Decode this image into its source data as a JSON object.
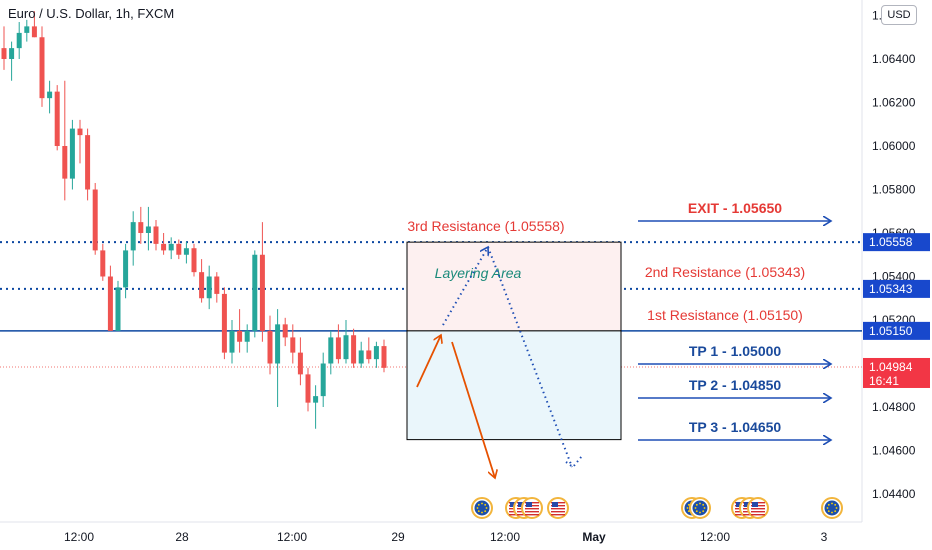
{
  "header": {
    "title": "Euro / U.S. Dollar, 1h, FXCM",
    "currency": "USD"
  },
  "chart_data": {
    "type": "candlestick",
    "symbol": "Euro / U.S. Dollar, 1h, FXCM",
    "y_axis": {
      "ticks": [
        "1.06600",
        "1.06400",
        "1.06200",
        "1.06000",
        "1.05800",
        "1.05600",
        "1.05400",
        "1.05200",
        "1.05000",
        "1.04800",
        "1.04600",
        "1.04400"
      ],
      "range": [
        1.0425,
        1.0665
      ]
    },
    "x_axis": {
      "ticks": [
        "12:00",
        "28",
        "12:00",
        "29",
        "12:00",
        "May",
        "12:00",
        "3"
      ]
    },
    "candles": [
      {
        "o": 1.0645,
        "h": 1.0655,
        "l": 1.0635,
        "c": 1.064
      },
      {
        "o": 1.064,
        "h": 1.0648,
        "l": 1.063,
        "c": 1.0645
      },
      {
        "o": 1.0645,
        "h": 1.0657,
        "l": 1.064,
        "c": 1.0652
      },
      {
        "o": 1.0652,
        "h": 1.0658,
        "l": 1.0648,
        "c": 1.0655
      },
      {
        "o": 1.0655,
        "h": 1.0662,
        "l": 1.065,
        "c": 1.065
      },
      {
        "o": 1.065,
        "h": 1.0655,
        "l": 1.0618,
        "c": 1.0622
      },
      {
        "o": 1.0622,
        "h": 1.063,
        "l": 1.0615,
        "c": 1.0625
      },
      {
        "o": 1.0625,
        "h": 1.0628,
        "l": 1.0598,
        "c": 1.06
      },
      {
        "o": 1.06,
        "h": 1.063,
        "l": 1.0575,
        "c": 1.0585
      },
      {
        "o": 1.0585,
        "h": 1.0612,
        "l": 1.058,
        "c": 1.0608
      },
      {
        "o": 1.0608,
        "h": 1.0612,
        "l": 1.0592,
        "c": 1.0605
      },
      {
        "o": 1.0605,
        "h": 1.0608,
        "l": 1.0575,
        "c": 1.058
      },
      {
        "o": 1.058,
        "h": 1.0583,
        "l": 1.055,
        "c": 1.0552
      },
      {
        "o": 1.0552,
        "h": 1.0555,
        "l": 1.0538,
        "c": 1.054
      },
      {
        "o": 1.054,
        "h": 1.0545,
        "l": 1.0515,
        "c": 1.0515
      },
      {
        "o": 1.0515,
        "h": 1.0538,
        "l": 1.0515,
        "c": 1.0535
      },
      {
        "o": 1.0535,
        "h": 1.0555,
        "l": 1.053,
        "c": 1.0552
      },
      {
        "o": 1.0552,
        "h": 1.057,
        "l": 1.0545,
        "c": 1.0565
      },
      {
        "o": 1.0565,
        "h": 1.0572,
        "l": 1.0555,
        "c": 1.056
      },
      {
        "o": 1.056,
        "h": 1.0572,
        "l": 1.0552,
        "c": 1.0563
      },
      {
        "o": 1.0563,
        "h": 1.0566,
        "l": 1.0552,
        "c": 1.0555
      },
      {
        "o": 1.0555,
        "h": 1.056,
        "l": 1.055,
        "c": 1.0552
      },
      {
        "o": 1.0552,
        "h": 1.0558,
        "l": 1.0548,
        "c": 1.0555
      },
      {
        "o": 1.0555,
        "h": 1.0557,
        "l": 1.0548,
        "c": 1.055
      },
      {
        "o": 1.055,
        "h": 1.0556,
        "l": 1.0546,
        "c": 1.0553
      },
      {
        "o": 1.0553,
        "h": 1.0555,
        "l": 1.054,
        "c": 1.0542
      },
      {
        "o": 1.0542,
        "h": 1.0548,
        "l": 1.0528,
        "c": 1.053
      },
      {
        "o": 1.053,
        "h": 1.0545,
        "l": 1.0525,
        "c": 1.054
      },
      {
        "o": 1.054,
        "h": 1.0542,
        "l": 1.0528,
        "c": 1.0532
      },
      {
        "o": 1.0532,
        "h": 1.0535,
        "l": 1.0502,
        "c": 1.0505
      },
      {
        "o": 1.0505,
        "h": 1.052,
        "l": 1.05,
        "c": 1.0515
      },
      {
        "o": 1.0515,
        "h": 1.0525,
        "l": 1.0505,
        "c": 1.051
      },
      {
        "o": 1.051,
        "h": 1.0518,
        "l": 1.0505,
        "c": 1.0515
      },
      {
        "o": 1.0515,
        "h": 1.0552,
        "l": 1.0512,
        "c": 1.055
      },
      {
        "o": 1.055,
        "h": 1.0565,
        "l": 1.051,
        "c": 1.0515
      },
      {
        "o": 1.0515,
        "h": 1.0522,
        "l": 1.0495,
        "c": 1.05
      },
      {
        "o": 1.05,
        "h": 1.0525,
        "l": 1.048,
        "c": 1.0518
      },
      {
        "o": 1.0518,
        "h": 1.0521,
        "l": 1.0508,
        "c": 1.0512
      },
      {
        "o": 1.0512,
        "h": 1.0518,
        "l": 1.05,
        "c": 1.0505
      },
      {
        "o": 1.0505,
        "h": 1.0512,
        "l": 1.049,
        "c": 1.0495
      },
      {
        "o": 1.0495,
        "h": 1.0498,
        "l": 1.0478,
        "c": 1.0482
      },
      {
        "o": 1.0482,
        "h": 1.049,
        "l": 1.047,
        "c": 1.0485
      },
      {
        "o": 1.0485,
        "h": 1.0505,
        "l": 1.048,
        "c": 1.05
      },
      {
        "o": 1.05,
        "h": 1.0515,
        "l": 1.0495,
        "c": 1.0512
      },
      {
        "o": 1.0512,
        "h": 1.0518,
        "l": 1.05,
        "c": 1.0502
      },
      {
        "o": 1.0502,
        "h": 1.052,
        "l": 1.05,
        "c": 1.0513
      },
      {
        "o": 1.0513,
        "h": 1.0516,
        "l": 1.0498,
        "c": 1.05
      },
      {
        "o": 1.05,
        "h": 1.051,
        "l": 1.0498,
        "c": 1.0506
      },
      {
        "o": 1.0506,
        "h": 1.0512,
        "l": 1.05,
        "c": 1.0502
      },
      {
        "o": 1.0502,
        "h": 1.051,
        "l": 1.0498,
        "c": 1.0508
      },
      {
        "o": 1.0508,
        "h": 1.0511,
        "l": 1.0496,
        "c": 1.0498
      }
    ],
    "levels": [
      {
        "price": 1.05558,
        "badge": "1.05558",
        "style": "dotted"
      },
      {
        "price": 1.05343,
        "badge": "1.05343",
        "style": "dotted"
      },
      {
        "price": 1.0515,
        "badge": "1.05150",
        "style": "solid"
      }
    ],
    "current_price": {
      "value": "1.04984",
      "countdown": "16:41"
    },
    "annotations": {
      "res3": "3rd Resistance (1.05558)",
      "res2": "2nd Resistance (1.05343)",
      "res1": "1st Resistance (1.05150)",
      "layering": "Layering Area",
      "exit": "EXIT - 1.05650",
      "tp1": "TP 1 - 1.05000",
      "tp2": "TP 2 - 1.04850",
      "tp3": "TP 3 - 1.04650"
    },
    "events": [
      {
        "slot": 1,
        "flags": [
          "eu"
        ]
      },
      {
        "slot": 2,
        "flags": [
          "us",
          "us",
          "us"
        ]
      },
      {
        "slot": 3,
        "flags": [
          "us"
        ]
      },
      {
        "slot": 4,
        "flags": [
          "eu",
          "eu"
        ]
      },
      {
        "slot": 5,
        "flags": [
          "us",
          "us",
          "us"
        ]
      },
      {
        "slot": 6,
        "flags": [
          "eu"
        ]
      }
    ],
    "colors": {
      "up": "#26a69a",
      "down": "#ef5350",
      "level_line": "#0d47a1",
      "arrow_blue": "#1f4fb5",
      "arrow_orange": "#e65100",
      "resistance_text": "#e53935",
      "tp_text": "#1a4a9c",
      "layering_text": "#1b8a7a"
    }
  }
}
